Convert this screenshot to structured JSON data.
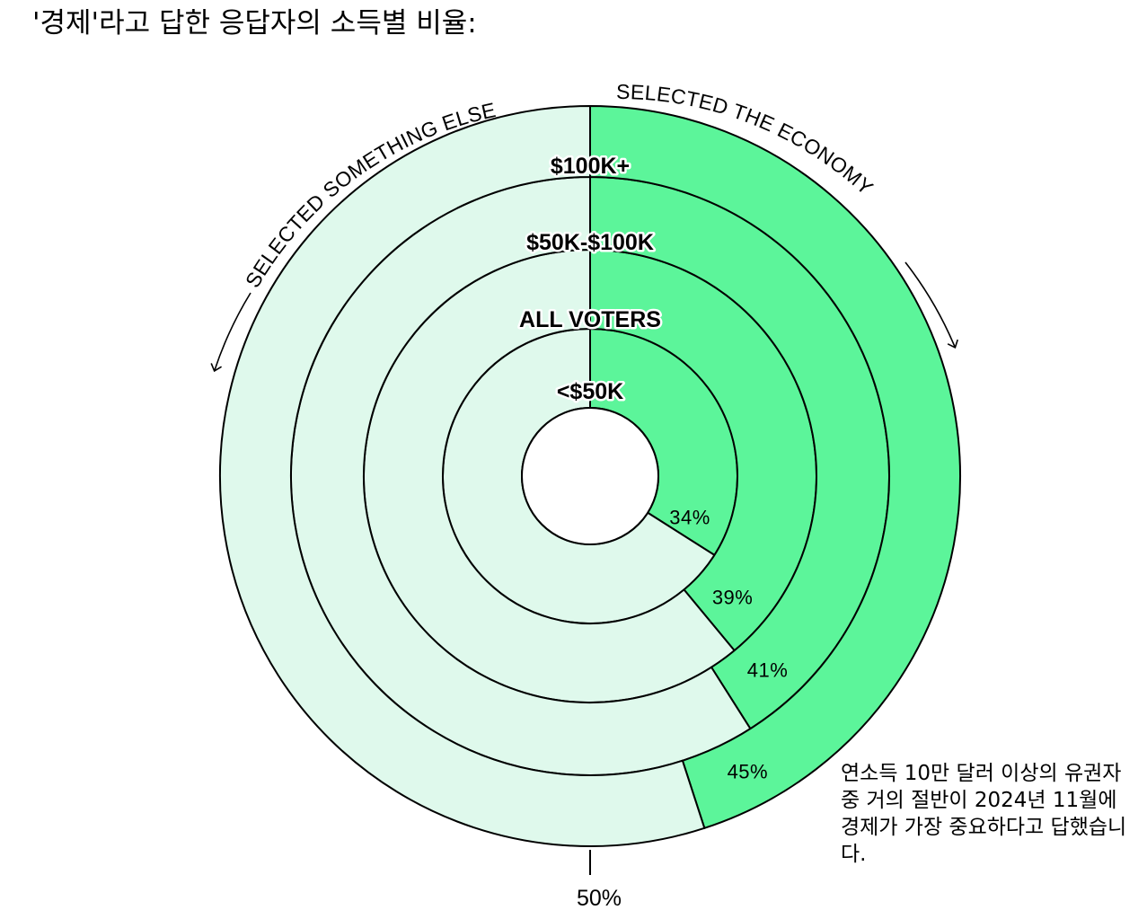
{
  "title": "'경제'라고 답한 응답자의 소득별 비율:",
  "arc_labels": {
    "left": "SELECTED SOMETHING ELSE",
    "right": "SELECTED THE ECONOMY"
  },
  "colors": {
    "economy": "#5cf59a",
    "else": "#dff9ec",
    "outline": "#000000"
  },
  "baseline_label": "50%",
  "annotation": "연소득 10만 달러 이상의 유권자 중 거의 절반이 2024년 11월에 경제가 가장 중요하다고 답했습니다.",
  "chart_data": {
    "type": "pie",
    "subtype": "concentric-rings",
    "series_labels": [
      "SELECTED THE ECONOMY",
      "SELECTED SOMETHING ELSE"
    ],
    "rings": [
      {
        "label": "<$50K",
        "economy_pct": 34,
        "value_label": "34%"
      },
      {
        "label": "ALL VOTERS",
        "economy_pct": 39,
        "value_label": "39%"
      },
      {
        "label": "$50K-$100K",
        "economy_pct": 41,
        "value_label": "41%"
      },
      {
        "label": "$100K+",
        "economy_pct": 45,
        "value_label": "45%"
      }
    ],
    "reference": {
      "value": 50,
      "label": "50%"
    }
  }
}
